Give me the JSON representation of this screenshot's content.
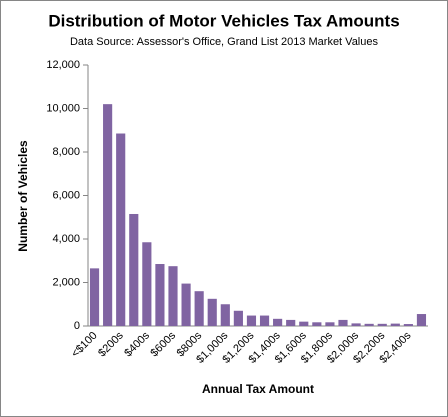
{
  "chart_data": {
    "type": "bar",
    "title": "Distribution of Motor Vehicles Tax Amounts",
    "subtitle": "Data Source: Assessor's Office, Grand List 2013 Market Values",
    "x_label": "Annual Tax Amount",
    "y_label": "Number of  Vehicles",
    "categories": [
      "<$100",
      null,
      "$200s",
      null,
      "$400s",
      null,
      "$600s",
      null,
      "$800s",
      null,
      "$1,000s",
      null,
      "$1,200s",
      null,
      "$1,400s",
      null,
      "$1,600s",
      null,
      "$1,800s",
      null,
      "$2,000s",
      null,
      "$2,200s",
      null,
      "$2,400s",
      null
    ],
    "values": [
      2650,
      10200,
      8850,
      5150,
      3850,
      2850,
      2750,
      1950,
      1600,
      1250,
      1000,
      700,
      480,
      480,
      330,
      280,
      200,
      170,
      170,
      280,
      120,
      100,
      100,
      110,
      90,
      550
    ],
    "color": "#8064a2",
    "ylim": [
      0,
      12000
    ],
    "yticks": [
      0,
      {
        "value": 2000,
        "label": "2,000"
      },
      {
        "value": 4000,
        "label": "4,000"
      },
      {
        "value": 6000,
        "label": "6,000"
      },
      {
        "value": 8000,
        "label": "8,000"
      },
      {
        "value": 10000,
        "label": "10,000"
      },
      {
        "value": 12000,
        "label": "12,000"
      }
    ],
    "grid": false
  }
}
